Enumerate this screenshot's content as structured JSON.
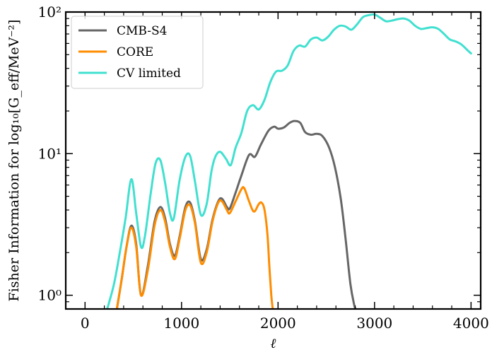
{
  "chart_data": {
    "type": "line",
    "xlabel": "ℓ",
    "ylabel": "Fisher Information for log₁₀[G_eff/MeV⁻²]",
    "xlim": [
      -200,
      4100
    ],
    "ylim": [
      0.8,
      100
    ],
    "yscale": "log",
    "grid": false,
    "legend_position": "top-left",
    "x_ticks": [
      0,
      1000,
      2000,
      3000,
      4000
    ],
    "x_tick_labels": [
      "0",
      "1000",
      "2000",
      "3000",
      "4000"
    ],
    "y_ticks": [
      1,
      10,
      100
    ],
    "y_tick_labels": [
      "10⁰",
      "10¹",
      "10²"
    ],
    "series": [
      {
        "name": "CMB-S4",
        "color": "#666666",
        "x": [
          330,
          380,
          430,
          480,
          530,
          580,
          650,
          720,
          780,
          830,
          880,
          930,
          980,
          1040,
          1090,
          1140,
          1200,
          1260,
          1320,
          1380,
          1420,
          1470,
          1500,
          1560,
          1620,
          1700,
          1760,
          1820,
          1900,
          1960,
          2000,
          2060,
          2120,
          2170,
          2230,
          2280,
          2340,
          2400,
          2460,
          2530,
          2590,
          2650,
          2700,
          2750,
          2790,
          2805
        ],
        "y": [
          0.8,
          1.3,
          2.2,
          3.1,
          2.3,
          1.0,
          1.6,
          3.3,
          4.2,
          3.5,
          2.3,
          1.9,
          2.6,
          4.2,
          4.5,
          3.3,
          1.8,
          2.1,
          3.4,
          4.6,
          4.8,
          4.2,
          4.1,
          5.3,
          7.0,
          9.8,
          9.5,
          11.5,
          14.5,
          15.5,
          15.0,
          15.3,
          16.5,
          17.0,
          16.5,
          14.2,
          13.6,
          13.8,
          13.3,
          11.0,
          8.0,
          4.8,
          2.5,
          1.2,
          0.85,
          0.8
        ]
      },
      {
        "name": "CORE",
        "color": "#ff8c00",
        "x": [
          330,
          380,
          430,
          480,
          530,
          580,
          650,
          720,
          780,
          830,
          880,
          930,
          980,
          1040,
          1090,
          1140,
          1200,
          1260,
          1320,
          1380,
          1420,
          1470,
          1500,
          1560,
          1620,
          1650,
          1700,
          1750,
          1800,
          1830,
          1860,
          1890,
          1910,
          1930,
          1945
        ],
        "y": [
          0.8,
          1.3,
          2.2,
          3.0,
          2.2,
          1.0,
          1.5,
          3.1,
          4.0,
          3.3,
          2.2,
          1.8,
          2.5,
          4.0,
          4.3,
          3.2,
          1.7,
          2.0,
          3.3,
          4.5,
          4.6,
          4.0,
          3.8,
          4.6,
          5.6,
          5.7,
          4.6,
          3.9,
          4.4,
          4.5,
          4.0,
          2.7,
          1.6,
          1.0,
          0.8
        ]
      },
      {
        "name": "CV limited",
        "color": "#40e0d0",
        "x": [
          230,
          300,
          360,
          420,
          480,
          530,
          580,
          620,
          680,
          730,
          780,
          830,
          880,
          920,
          980,
          1040,
          1090,
          1140,
          1200,
          1260,
          1310,
          1350,
          1400,
          1460,
          1510,
          1560,
          1620,
          1680,
          1740,
          1800,
          1860,
          1920,
          1980,
          2040,
          2100,
          2160,
          2220,
          2280,
          2340,
          2400,
          2460,
          2520,
          2580,
          2640,
          2700,
          2760,
          2820,
          2880,
          2940,
          3000,
          3060,
          3120,
          3180,
          3240,
          3300,
          3360,
          3420,
          3480,
          3540,
          3600,
          3660,
          3720,
          3780,
          3840,
          3900,
          3960,
          4000
        ],
        "y": [
          0.8,
          1.2,
          2.0,
          3.5,
          6.6,
          3.8,
          2.2,
          2.6,
          5.2,
          8.5,
          9.0,
          6.2,
          3.8,
          3.5,
          6.5,
          9.5,
          9.6,
          6.3,
          3.7,
          4.4,
          7.5,
          9.5,
          10.3,
          9.2,
          8.3,
          11.0,
          14.0,
          20.0,
          22.0,
          20.5,
          24.0,
          32.0,
          38.0,
          38.5,
          42.0,
          53.0,
          58.0,
          57.0,
          64.0,
          66.0,
          63.0,
          67.0,
          75.0,
          80.0,
          79.0,
          75.0,
          82.0,
          92.0,
          95.0,
          96.0,
          91.0,
          86.0,
          87.0,
          89.0,
          90.0,
          87.0,
          80.0,
          76.0,
          77.0,
          78.0,
          76.0,
          70.0,
          64.0,
          62.0,
          59.0,
          54.0,
          51.0
        ]
      }
    ]
  }
}
